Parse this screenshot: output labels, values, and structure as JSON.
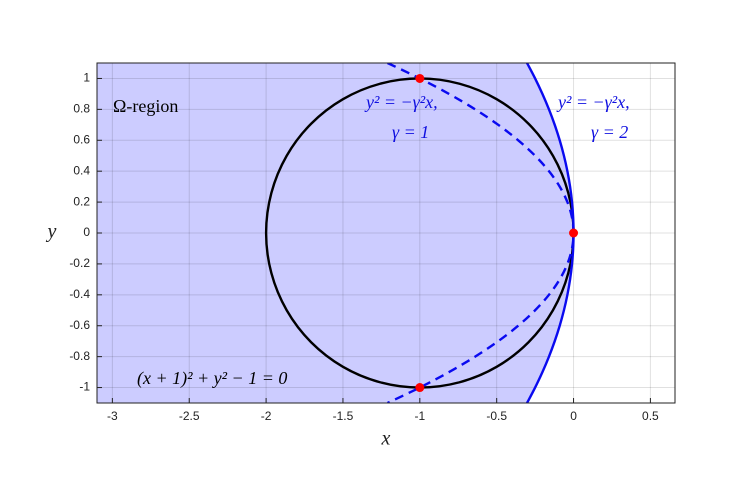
{
  "chart_data": {
    "type": "line",
    "xlabel": "x",
    "ylabel": "y",
    "xlim": [
      -3.1,
      0.66
    ],
    "ylim": [
      -1.1,
      1.1
    ],
    "xticks": [
      -3,
      -2.5,
      -2,
      -1.5,
      -1,
      -0.5,
      0,
      0.5
    ],
    "yticks": [
      -1,
      -0.8,
      -0.6,
      -0.4,
      -0.2,
      0,
      0.2,
      0.4,
      0.6,
      0.8,
      1
    ],
    "grid": true,
    "region_color": "#ccccff",
    "annotations": [
      "Ω-region",
      "(x + 1)² + y² − 1 = 0",
      "y² = −γ²x,",
      "γ = 1",
      "y² = −γ²x,",
      "γ = 2"
    ],
    "series": [
      {
        "color": "#000000",
        "style": "solid",
        "closed": true,
        "x": [
          0,
          -0.0341,
          -0.134,
          -0.2929,
          -0.5,
          -0.7412,
          -1,
          -1.2588,
          -1.5,
          -1.7071,
          -1.866,
          -1.9659,
          -2,
          -1.9659,
          -1.866,
          -1.7071,
          -1.5,
          -1.2588,
          -1,
          -0.7412,
          -0.5,
          -0.2929,
          -0.134,
          -0.0341,
          0
        ],
        "values": [
          0,
          0.2588,
          0.5,
          0.7071,
          0.866,
          0.9659,
          1,
          0.9659,
          0.866,
          0.7071,
          0.5,
          0.2588,
          0,
          -0.2588,
          -0.5,
          -0.7071,
          -0.866,
          -0.9659,
          -1,
          -0.9659,
          -0.866,
          -0.7071,
          -0.5,
          -0.2588,
          0
        ]
      },
      {
        "color": "#0a0af0",
        "style": "dashed",
        "x": [
          -1.21,
          -1,
          -0.81,
          -0.64,
          -0.49,
          -0.36,
          -0.25,
          -0.16,
          -0.09,
          -0.04,
          -0.01,
          0,
          -0.01,
          -0.04,
          -0.09,
          -0.16,
          -0.25,
          -0.36,
          -0.49,
          -0.64,
          -0.81,
          -1,
          -1.21
        ],
        "values": [
          1.1,
          1,
          0.9,
          0.8,
          0.7,
          0.6,
          0.5,
          0.4,
          0.3,
          0.2,
          0.1,
          0,
          -0.1,
          -0.2,
          -0.3,
          -0.4,
          -0.5,
          -0.6,
          -0.7,
          -0.8,
          -0.9,
          -1,
          -1.1
        ]
      },
      {
        "color": "#0a0af0",
        "style": "solid",
        "region": true,
        "x": [
          -0.3025,
          -0.25,
          -0.2025,
          -0.16,
          -0.1225,
          -0.09,
          -0.0625,
          -0.04,
          -0.0225,
          -0.01,
          -0.0025,
          0,
          -0.0025,
          -0.01,
          -0.0225,
          -0.04,
          -0.0625,
          -0.09,
          -0.1225,
          -0.16,
          -0.2025,
          -0.25,
          -0.3025
        ],
        "values": [
          1.1,
          1,
          0.9,
          0.8,
          0.7,
          0.6,
          0.5,
          0.4,
          0.3,
          0.2,
          0.1,
          0,
          -0.1,
          -0.2,
          -0.3,
          -0.4,
          -0.5,
          -0.6,
          -0.7,
          -0.8,
          -0.9,
          -1,
          -1.1
        ]
      },
      {
        "color": "#ff0000",
        "style": "markers",
        "x": [
          -1,
          0,
          -1
        ],
        "values": [
          1,
          0,
          -1
        ]
      }
    ]
  }
}
